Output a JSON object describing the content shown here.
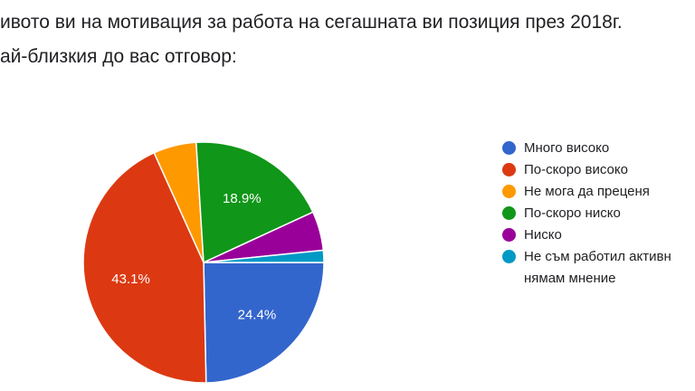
{
  "question": {
    "line1": "ивото ви на мотивация за работа на сегашната ви позиция през 2018г.",
    "line2": "ай-близкия до вас отговор:"
  },
  "chart_data": {
    "type": "pie",
    "title": "",
    "slices": [
      {
        "label": "Много високо",
        "value": 24.4,
        "value_label": "24.4%",
        "color": "#3366cc"
      },
      {
        "label": "По-скоро високо",
        "value": 43.1,
        "value_label": "43.1%",
        "color": "#dc3912"
      },
      {
        "label": "Не мога да преценя",
        "value": 5.7,
        "value_label": "",
        "color": "#ff9900"
      },
      {
        "label": "По-скоро ниско",
        "value": 18.9,
        "value_label": "18.9%",
        "color": "#109618"
      },
      {
        "label": "Ниско",
        "value": 5.2,
        "value_label": "",
        "color": "#990099"
      },
      {
        "label": "Не съм работил активн\nнямам мнение",
        "value": 1.6,
        "value_label": "",
        "color": "#0099c6"
      }
    ],
    "start": "3 o'clock, clockwise",
    "legend_position": "right"
  }
}
